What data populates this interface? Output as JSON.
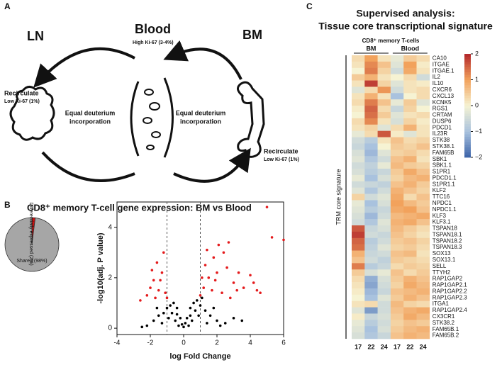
{
  "panels": [
    "A",
    "B",
    "C"
  ],
  "diagram": {
    "ln": "LN",
    "blood": "Blood",
    "bm": "BM",
    "high_ki67": "High Ki-67 (3-4%)",
    "recirculate_left": "Recirculate",
    "low_left": "Low Ki-67 (1%)",
    "recirculate_right": "Recirculate",
    "low_right": "Low Ki-67 (1%)",
    "equal_left": [
      "Equal deuterium",
      "incorporation"
    ],
    "equal_right": [
      "Equal deuterium",
      "incorporation"
    ]
  },
  "chart_data": [
    {
      "type": "pie",
      "title": "CD8⁺ memory T-cell gene expression: BM vs Blood",
      "categories": [
        "Differentially expressed (2%)",
        "Shared (98%)"
      ],
      "values": [
        2,
        98
      ],
      "colors": [
        "#cc1111",
        "#a6a6a6"
      ]
    },
    {
      "type": "scatter",
      "xlabel": "log Fold Change",
      "ylabel": "-log10(adj. P value)",
      "xlim": [
        -4,
        6
      ],
      "ylim": [
        -0.25,
        5
      ],
      "xticks": [
        -4,
        -2,
        0,
        2,
        4,
        6
      ],
      "yticks": [
        0,
        2,
        4
      ],
      "thresholds": [
        -1,
        1
      ],
      "series": [
        {
          "color": "#000000",
          "x": [
            -2.2,
            -1.8,
            -1.5,
            -1.2,
            -1.0,
            -0.8,
            -0.6,
            -0.4,
            -0.2,
            0,
            0.2,
            0.4,
            0.6,
            0.8,
            1.0,
            1.3,
            1.6,
            2.0,
            2.5,
            3.0,
            3.5,
            -0.5,
            0.5,
            -0.3,
            0.3,
            -1.3,
            1.4,
            -0.9,
            0.9,
            -0.7,
            0.7,
            -0.1,
            0.1,
            -2.5,
            2.2,
            1.8,
            -1.6,
            0.4,
            -0.4,
            1.1
          ],
          "y": [
            0.1,
            0.3,
            0.5,
            0.6,
            0.8,
            0.9,
            1.0,
            0.8,
            0.4,
            0.05,
            0.4,
            0.8,
            1.0,
            1.1,
            0.9,
            0.7,
            0.5,
            0.3,
            0.2,
            0.4,
            0.3,
            0.3,
            0.3,
            0.1,
            0.1,
            0.2,
            0.2,
            0.4,
            0.5,
            0.6,
            0.7,
            0.15,
            0.2,
            0.05,
            0.1,
            0.8,
            0.8,
            0.5,
            0.55,
            1.2
          ]
        },
        {
          "color": "#e41a1c",
          "x": [
            -1.5,
            -1.8,
            -2.0,
            -1.3,
            -1.6,
            -1.2,
            -2.2,
            -1.1,
            -1.4,
            -2.6,
            -1.9,
            -1.0,
            1.0,
            1.2,
            1.5,
            1.3,
            1.8,
            2.1,
            2.4,
            2.0,
            1.7,
            2.6,
            3.0,
            1.4,
            2.3,
            3.3,
            3.6,
            4.2,
            4.4,
            4.0,
            4.6,
            5.0,
            5.3,
            6.0,
            2.7,
            1.1,
            -1.7,
            1.9,
            3.2,
            2.8
          ],
          "y": [
            1.5,
            1.9,
            1.6,
            2.2,
            2.6,
            3.0,
            1.3,
            1.4,
            1.9,
            1.1,
            2.3,
            1.2,
            1.3,
            1.6,
            2.0,
            2.5,
            2.8,
            3.3,
            3.0,
            2.2,
            1.5,
            2.4,
            1.8,
            3.1,
            1.4,
            2.2,
            1.6,
            1.8,
            1.5,
            2.1,
            1.4,
            4.8,
            3.6,
            3.5,
            3.4,
            2.0,
            1.2,
            1.9,
            1.5,
            1.2
          ]
        }
      ]
    },
    {
      "type": "heatmap",
      "title": [
        "Supervised analysis:",
        "Tissue core transcriptional signature"
      ],
      "subtitle": "CD8⁺ memory T-cells",
      "groups": [
        "BM",
        "Blood"
      ],
      "row_group": "TRM core signature",
      "categories": [
        "17",
        "22",
        "24",
        "17",
        "22",
        "24"
      ],
      "rows": [
        "CA10",
        "ITGAE",
        "ITGAE.1",
        "IL2",
        "IL10",
        "CXCR6",
        "CXCL13",
        "KCNK5",
        "RGS1",
        "CRTAM",
        "DUSP6",
        "PDCD1",
        "IL23R",
        "STK38",
        "STK38.1",
        "FAM65B",
        "SBK1",
        "SBK1.1",
        "S1PR1",
        "PDCD1.1",
        "S1PR1.1",
        "KLF2",
        "TTC16",
        "NPDC1",
        "NPDC1.1",
        "KLF3",
        "KLF3.1",
        "TSPAN18",
        "TSPAN18.1",
        "TSPAN18.2",
        "TSPAN18.3",
        "SOX13",
        "SOX13.1",
        "SELL",
        "TTYH2",
        "RAP1GAP2",
        "RAP1GAP2.1",
        "RAP1GAP2.2",
        "RAP1GAP2.3",
        "ITGA1",
        "RAP1GAP2.4",
        "CX3CR1",
        "STK38.2",
        "FAM65B.1",
        "FAM65B.2"
      ],
      "values": [
        [
          0.3,
          1.0,
          0.2,
          -0.2,
          0.5,
          0.3
        ],
        [
          0.2,
          1.2,
          0.6,
          -0.3,
          1.0,
          0.1
        ],
        [
          0.0,
          1.3,
          0.4,
          -0.5,
          0.9,
          0.2
        ],
        [
          0.5,
          0.8,
          0.2,
          0.0,
          0.3,
          -0.5
        ],
        [
          0.2,
          1.8,
          0.4,
          -0.3,
          0.2,
          0.1
        ],
        [
          -0.3,
          0.3,
          1.1,
          -0.5,
          0.2,
          0.3
        ],
        [
          0.2,
          0.8,
          0.2,
          -1.0,
          0.0,
          0.3
        ],
        [
          0.3,
          1.3,
          0.6,
          -0.2,
          0.5,
          -0.3
        ],
        [
          0.1,
          1.5,
          0.3,
          -0.6,
          0.4,
          0.0
        ],
        [
          0.0,
          1.4,
          0.5,
          -0.3,
          0.2,
          0.3
        ],
        [
          0.3,
          1.2,
          0.2,
          -0.4,
          0.4,
          0.1
        ],
        [
          0.2,
          0.4,
          -0.3,
          0.3,
          0.8,
          0.2
        ],
        [
          -0.2,
          0.3,
          1.6,
          0.1,
          -0.3,
          0.2
        ],
        [
          -0.5,
          -0.8,
          0.2,
          0.6,
          0.3,
          0.4
        ],
        [
          -0.6,
          -1.0,
          0.0,
          0.5,
          0.4,
          0.6
        ],
        [
          -0.4,
          -1.1,
          -0.3,
          0.4,
          0.5,
          0.3
        ],
        [
          -0.3,
          -0.9,
          -0.5,
          0.6,
          0.8,
          0.2
        ],
        [
          -0.5,
          -0.7,
          -0.2,
          0.7,
          0.5,
          0.4
        ],
        [
          -0.4,
          -0.8,
          -0.6,
          0.5,
          0.9,
          0.6
        ],
        [
          -0.2,
          -1.0,
          -0.4,
          0.4,
          0.7,
          0.8
        ],
        [
          -0.5,
          -0.6,
          -0.7,
          0.6,
          0.8,
          0.5
        ],
        [
          -0.3,
          -0.9,
          -0.5,
          0.8,
          0.6,
          0.4
        ],
        [
          0.4,
          -0.5,
          -0.3,
          0.9,
          0.3,
          0.6
        ],
        [
          -0.2,
          -1.0,
          -0.4,
          1.0,
          0.7,
          0.5
        ],
        [
          -0.3,
          -0.8,
          -0.6,
          0.9,
          1.0,
          0.6
        ],
        [
          -0.4,
          -1.1,
          -0.5,
          0.7,
          0.8,
          0.9
        ],
        [
          -0.5,
          -0.9,
          -0.3,
          0.8,
          0.9,
          0.6
        ],
        [
          1.6,
          -0.6,
          -0.4,
          0.7,
          0.5,
          0.3
        ],
        [
          1.8,
          -0.5,
          -0.6,
          0.6,
          0.4,
          0.2
        ],
        [
          1.5,
          -0.8,
          -0.5,
          0.5,
          0.6,
          0.4
        ],
        [
          1.4,
          -0.7,
          -0.3,
          0.4,
          0.5,
          0.3
        ],
        [
          0.8,
          -0.6,
          -0.5,
          0.6,
          0.7,
          0.2
        ],
        [
          0.6,
          -0.5,
          -0.7,
          0.5,
          0.4,
          0.3
        ],
        [
          1.3,
          -0.8,
          -0.6,
          0.3,
          0.5,
          0.4
        ],
        [
          0.5,
          -0.4,
          -0.2,
          0.6,
          0.3,
          0.5
        ],
        [
          0.3,
          -1.2,
          -0.4,
          0.5,
          0.8,
          0.6
        ],
        [
          0.2,
          -1.3,
          -0.5,
          0.4,
          0.9,
          0.7
        ],
        [
          0.1,
          -1.1,
          -0.6,
          0.6,
          0.7,
          0.8
        ],
        [
          0.0,
          -1.0,
          -0.3,
          0.5,
          0.8,
          0.6
        ],
        [
          0.2,
          0.3,
          -0.5,
          0.7,
          0.4,
          0.3
        ],
        [
          -0.3,
          -1.4,
          -0.5,
          0.6,
          0.8,
          0.9
        ],
        [
          0.1,
          -0.6,
          -0.4,
          0.5,
          0.9,
          0.7
        ],
        [
          -0.2,
          -0.8,
          -0.5,
          0.4,
          0.6,
          0.5
        ],
        [
          -0.3,
          -1.0,
          -0.4,
          0.5,
          0.7,
          0.8
        ],
        [
          -0.4,
          -0.9,
          -0.6,
          0.6,
          0.8,
          0.7
        ]
      ],
      "clim": [
        -2,
        2
      ],
      "colormap": [
        "#3a62a8",
        "#a9c2de",
        "#f6f3d3",
        "#f2a25c",
        "#b2262b"
      ],
      "cticks": [
        2,
        1,
        0,
        {
          "value": -1,
          "label": "−1"
        },
        {
          "value": -2,
          "label": "−2"
        }
      ]
    }
  ]
}
